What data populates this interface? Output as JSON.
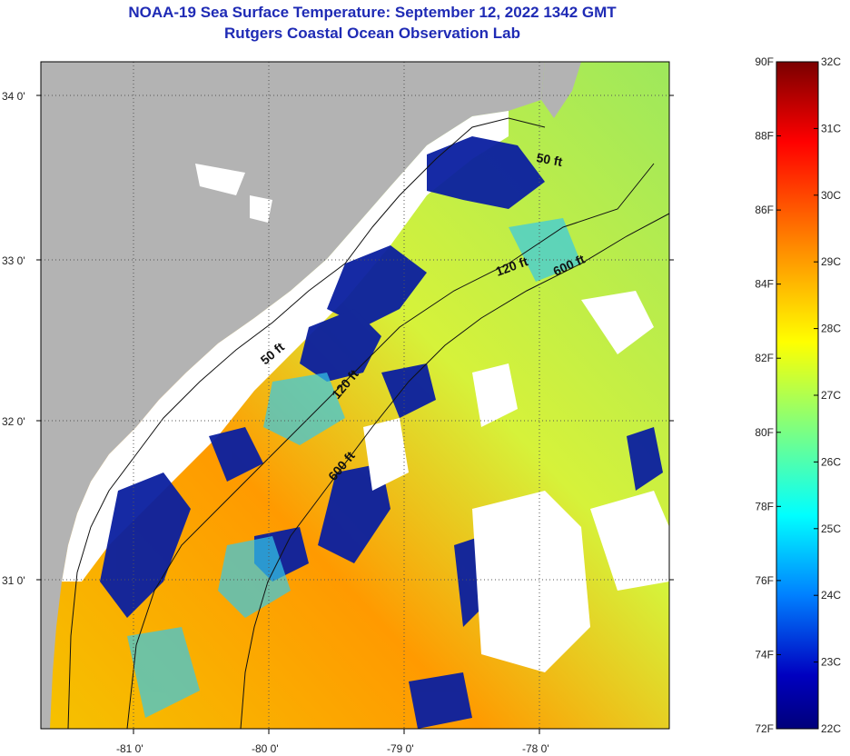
{
  "title": {
    "line1": "NOAA-19 Sea Surface Temperature:  September 12, 2022 1342 GMT",
    "line2": "Rutgers Coastal Ocean Observation Lab"
  },
  "map": {
    "lat_labels": [
      "34 0'",
      "33 0'",
      "32 0'",
      "31 0'"
    ],
    "lon_labels": [
      "-81 0'",
      "-80 0'",
      "-79 0'",
      "-78 0'"
    ],
    "contour_labels": [
      {
        "id": "c50a",
        "text": "50 ft"
      },
      {
        "id": "c120a",
        "text": "120 ft"
      },
      {
        "id": "c600a",
        "text": "600 ft"
      },
      {
        "id": "c50b",
        "text": "50 ft"
      },
      {
        "id": "c120b",
        "text": "120 ft"
      },
      {
        "id": "c600b",
        "text": "600 ft"
      }
    ],
    "colors": {
      "land": "#b3b3b3",
      "cloud": "#ffffff"
    }
  },
  "colorbar": {
    "fahrenheit": [
      "90F",
      "88F",
      "86F",
      "84F",
      "82F",
      "80F",
      "78F",
      "76F",
      "74F",
      "72F"
    ],
    "celsius": [
      "32C",
      "31C",
      "30C",
      "29C",
      "28C",
      "27C",
      "26C",
      "25C",
      "24C",
      "23C",
      "22C"
    ],
    "gradient": [
      "#8b0000",
      "#ff0000",
      "#ff8c00",
      "#ffff00",
      "#7fff7f",
      "#00ffff",
      "#0080ff",
      "#0000aa",
      "#00008b"
    ]
  }
}
